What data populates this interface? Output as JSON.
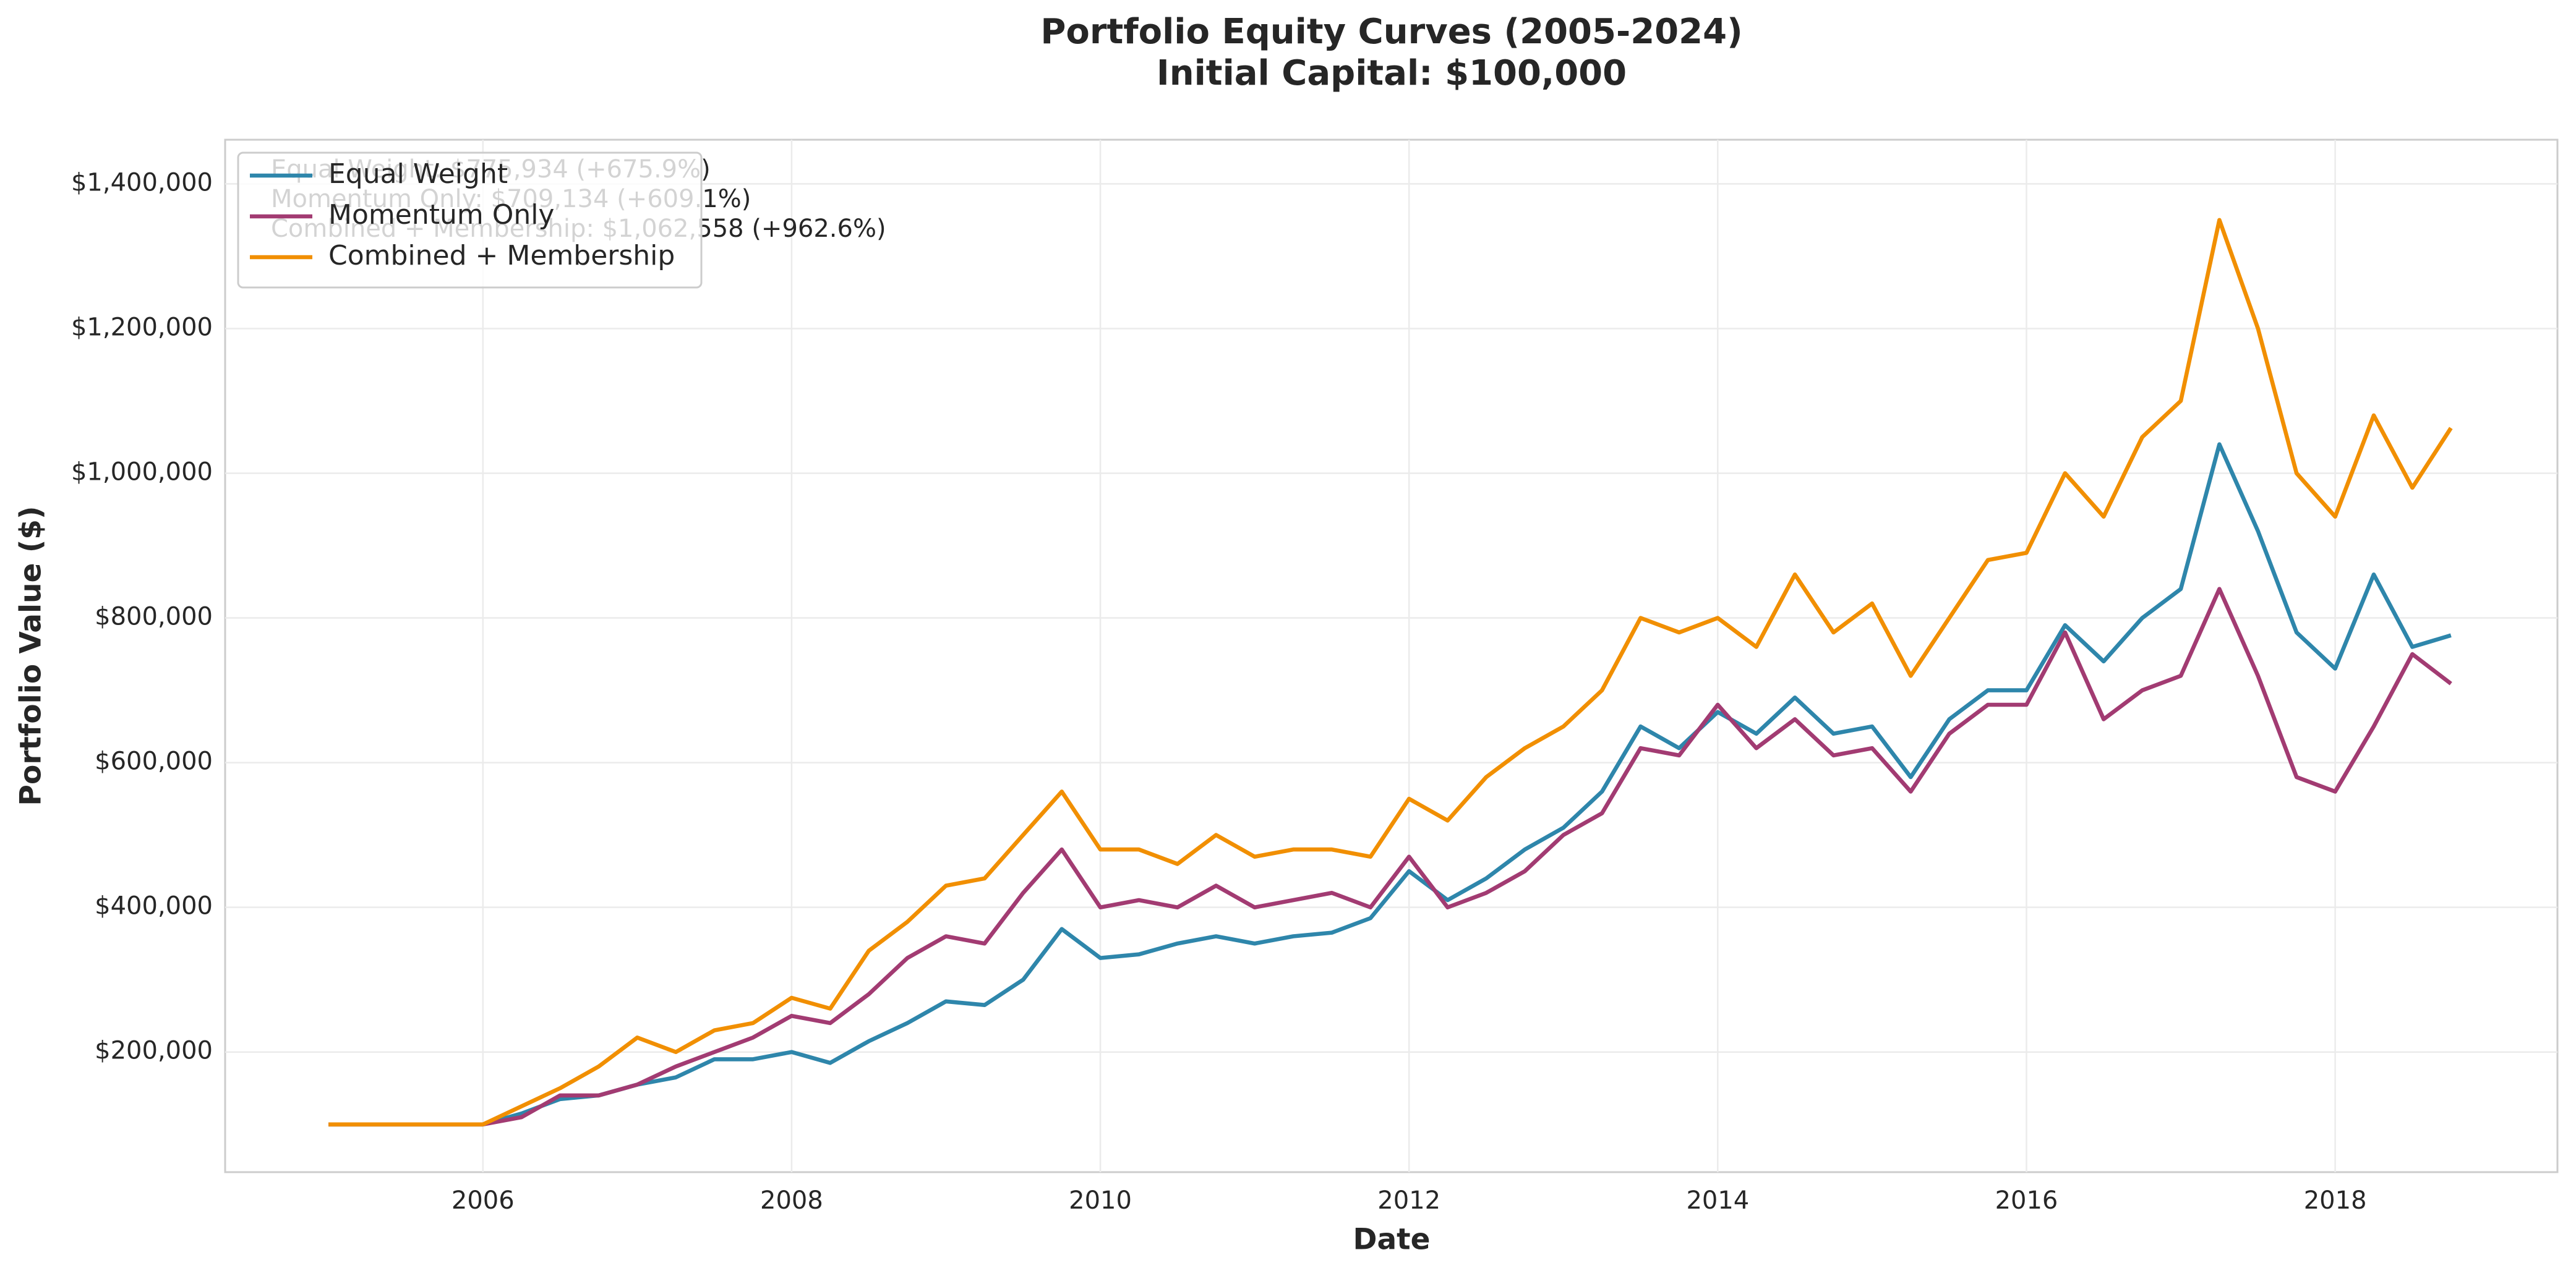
{
  "chart_data": {
    "type": "line",
    "title": "Portfolio Equity Curves (2005-2024)",
    "subtitle": "Initial Capital: $100,000",
    "x_label": "Date",
    "y_label": "Portfolio Value ($)",
    "x": [
      2005,
      2005.25,
      2005.5,
      2005.75,
      2006,
      2006.25,
      2006.5,
      2006.75,
      2007,
      2007.25,
      2007.5,
      2007.75,
      2008,
      2008.25,
      2008.5,
      2008.75,
      2009,
      2009.25,
      2009.5,
      2009.75,
      2010,
      2010.25,
      2010.5,
      2010.75,
      2011,
      2011.25,
      2011.5,
      2011.75,
      2012,
      2012.25,
      2012.5,
      2012.75,
      2013,
      2013.25,
      2013.5,
      2013.75,
      2014,
      2014.25,
      2014.5,
      2014.75,
      2015,
      2015.25,
      2015.5,
      2015.75,
      2016,
      2016.25,
      2016.5,
      2016.75,
      2017,
      2017.25,
      2017.5,
      2017.75,
      2018,
      2018.25,
      2018.5,
      2018.75
    ],
    "series": [
      {
        "name": "Equal Weight",
        "color": "#2e86ab",
        "values": [
          100000,
          100000,
          100000,
          100000,
          100000,
          115000,
          135000,
          140000,
          155000,
          165000,
          190000,
          190000,
          200000,
          185000,
          215000,
          240000,
          270000,
          265000,
          300000,
          370000,
          330000,
          335000,
          350000,
          360000,
          350000,
          360000,
          365000,
          385000,
          450000,
          410000,
          440000,
          480000,
          510000,
          560000,
          650000,
          620000,
          670000,
          640000,
          690000,
          640000,
          650000,
          580000,
          660000,
          700000,
          700000,
          790000,
          740000,
          800000,
          840000,
          1040000,
          920000,
          780000,
          730000,
          860000,
          760000,
          775934
        ]
      },
      {
        "name": "Momentum Only",
        "color": "#a23b72",
        "values": [
          100000,
          100000,
          100000,
          100000,
          100000,
          110000,
          140000,
          140000,
          155000,
          180000,
          200000,
          220000,
          250000,
          240000,
          280000,
          330000,
          360000,
          350000,
          420000,
          480000,
          400000,
          410000,
          400000,
          430000,
          400000,
          410000,
          420000,
          400000,
          470000,
          400000,
          420000,
          450000,
          500000,
          530000,
          620000,
          610000,
          680000,
          620000,
          660000,
          610000,
          620000,
          560000,
          640000,
          680000,
          680000,
          780000,
          660000,
          700000,
          720000,
          840000,
          720000,
          580000,
          560000,
          650000,
          750000,
          709134
        ]
      },
      {
        "name": "Combined + Membership",
        "color": "#f18f01",
        "values": [
          100000,
          100000,
          100000,
          100000,
          100000,
          125000,
          150000,
          180000,
          220000,
          200000,
          230000,
          240000,
          275000,
          260000,
          340000,
          380000,
          430000,
          440000,
          500000,
          560000,
          480000,
          480000,
          460000,
          500000,
          470000,
          480000,
          480000,
          470000,
          550000,
          520000,
          580000,
          620000,
          650000,
          700000,
          800000,
          780000,
          800000,
          760000,
          860000,
          780000,
          820000,
          720000,
          800000,
          880000,
          890000,
          1000000,
          940000,
          1050000,
          1100000,
          1350000,
          1200000,
          1000000,
          940000,
          1080000,
          980000,
          1062558
        ]
      }
    ],
    "annotations": [
      "Equal Weight: $775,934 (+675.9%)",
      "Momentum Only: $709,134 (+609.1%)",
      "Combined + Membership: $1,062,558 (+962.6%)"
    ],
    "xlim": [
      2004.33,
      2019.44
    ],
    "xticks": [
      2006,
      2008,
      2010,
      2012,
      2014,
      2016,
      2018
    ],
    "ylim": [
      34000,
      1461000
    ],
    "yticks": [
      {
        "value": 200000,
        "label": "$200,000"
      },
      {
        "value": 400000,
        "label": "$400,000"
      },
      {
        "value": 600000,
        "label": "$600,000"
      },
      {
        "value": 800000,
        "label": "$800,000"
      },
      {
        "value": 1000000,
        "label": "$1,000,000"
      },
      {
        "value": 1200000,
        "label": "$1,200,000"
      },
      {
        "value": 1400000,
        "label": "$1,400,000"
      }
    ],
    "grid": true,
    "legend": "upper-left"
  }
}
